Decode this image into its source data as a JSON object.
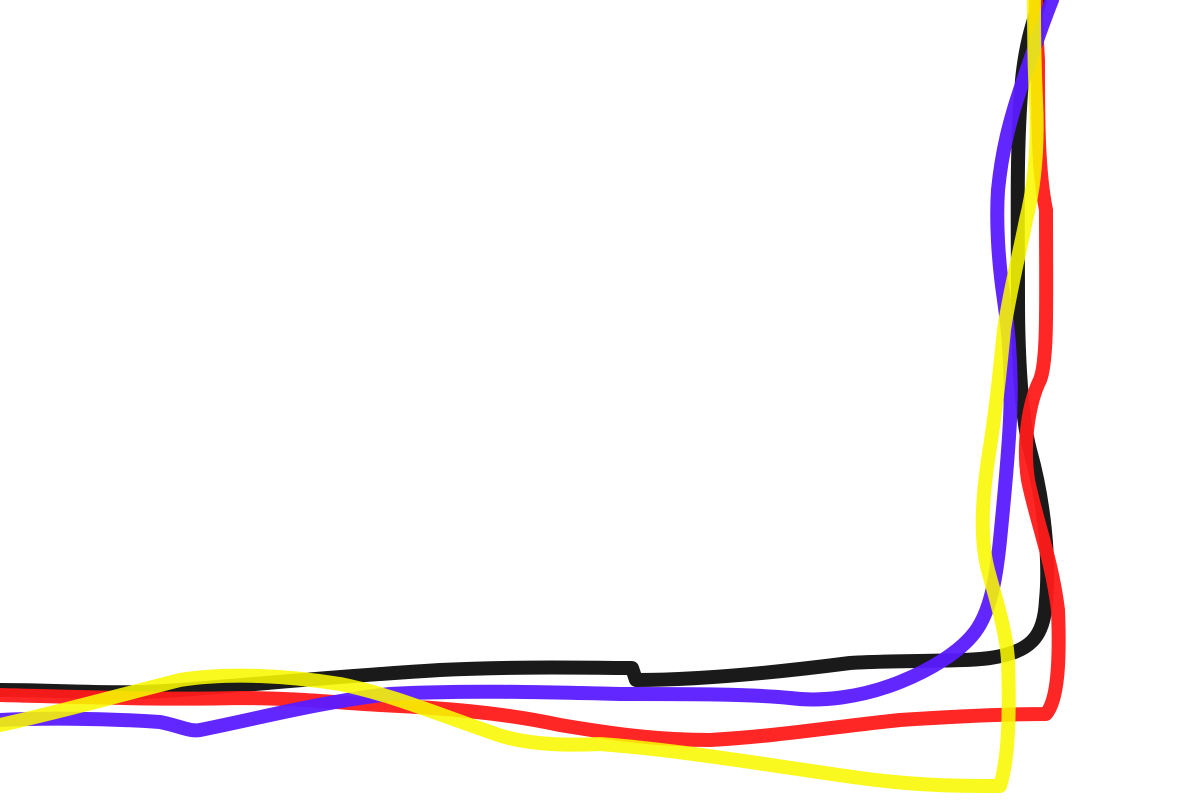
{
  "canvas": {
    "background": "#ffffff"
  },
  "strokes": [
    {
      "name": "black-stroke",
      "color": "#1a1a1a",
      "opacity": 1.0
    },
    {
      "name": "red-stroke",
      "color": "#ff1a1a",
      "opacity": 0.95
    },
    {
      "name": "purple-stroke",
      "color": "#5a1aff",
      "opacity": 0.95
    },
    {
      "name": "yellow-stroke",
      "color": "#f8f800",
      "opacity": 0.88
    }
  ]
}
